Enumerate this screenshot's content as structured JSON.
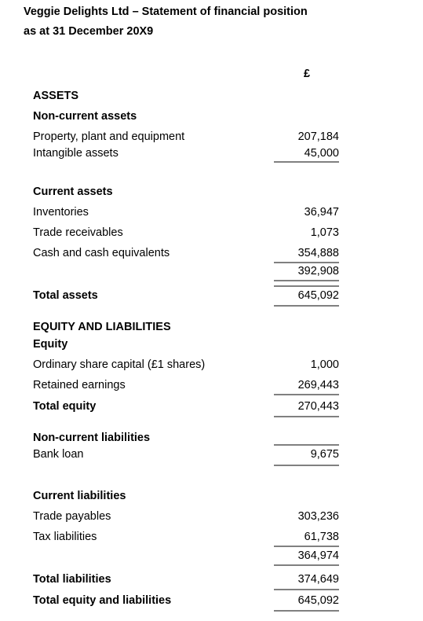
{
  "header": {
    "title": "Veggie Delights Ltd – Statement of financial position",
    "subtitle": "as at 31 December 20X9",
    "currency": "£"
  },
  "rows": [
    {
      "label": "ASSETS"
    },
    {
      "label": "Non-current assets"
    },
    {
      "label": "Property, plant and equipment",
      "value": "207,184"
    },
    {
      "label": "Intangible assets",
      "value": "45,000"
    },
    {
      "label": "Current assets"
    },
    {
      "label": "Inventories",
      "value": "36,947"
    },
    {
      "label": "Trade receivables",
      "value": "1,073"
    },
    {
      "label": "Cash and cash equivalents",
      "value": "354,888"
    },
    {
      "value": "392,908"
    },
    {
      "label": "Total assets",
      "value": "645,092"
    },
    {
      "label": "EQUITY AND LIABILITIES"
    },
    {
      "label": "Equity"
    },
    {
      "label": "Ordinary share capital (£1 shares)",
      "value": "1,000"
    },
    {
      "label": "Retained earnings",
      "value": "269,443"
    },
    {
      "label": "Total equity",
      "value": "270,443"
    },
    {
      "label": "Non-current liabilities"
    },
    {
      "label": "Bank loan",
      "value": "9,675"
    },
    {
      "label": "Current liabilities"
    },
    {
      "label": "Trade payables",
      "value": "303,236"
    },
    {
      "label": "Tax liabilities",
      "value": "61,738"
    },
    {
      "value": "364,974"
    },
    {
      "label": "Total liabilities",
      "value": "374,649"
    },
    {
      "label": "Total equity and liabilities",
      "value": "645,092"
    }
  ]
}
